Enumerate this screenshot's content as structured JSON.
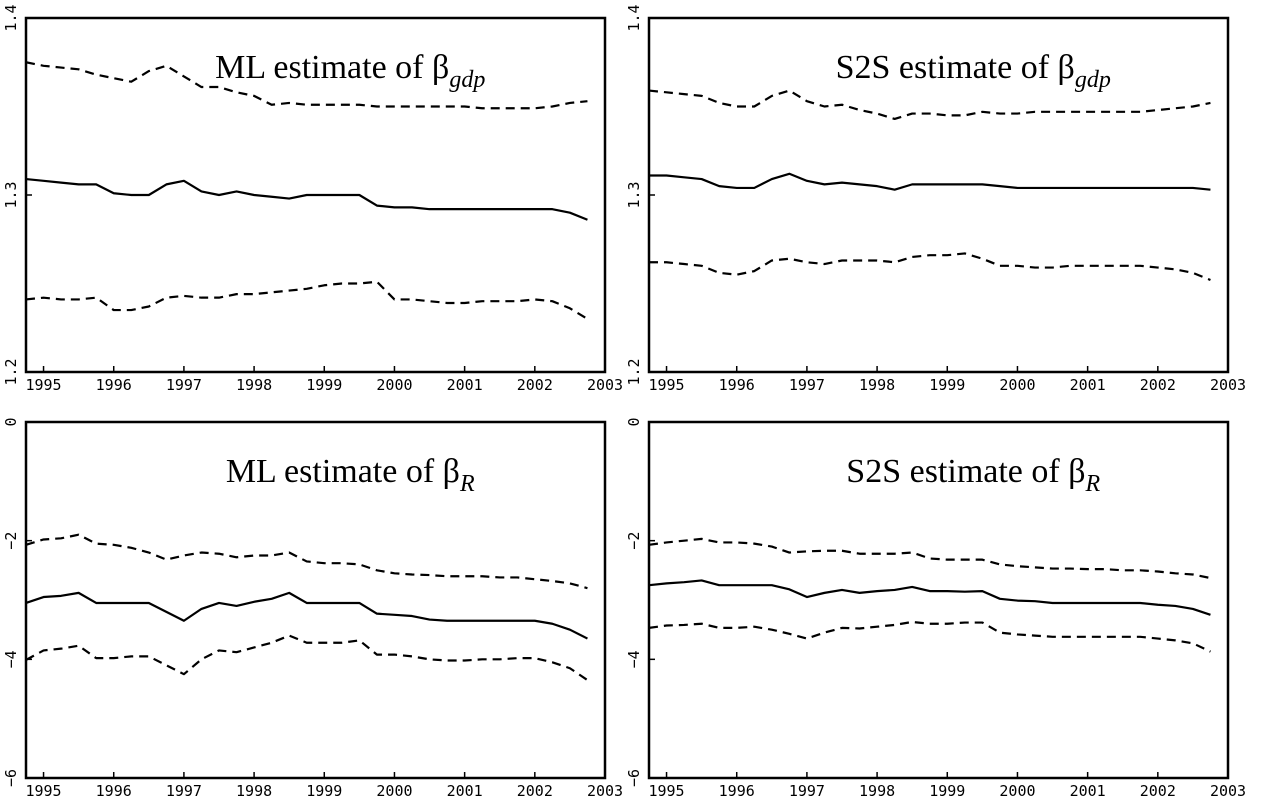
{
  "chart_data": [
    {
      "type": "line",
      "title": "ML estimate of β",
      "title_subscript": "gdp",
      "x": [
        1994.75,
        1995,
        1995.25,
        1995.5,
        1995.75,
        1996,
        1996.25,
        1996.5,
        1996.75,
        1997,
        1997.25,
        1997.5,
        1997.75,
        1998,
        1998.25,
        1998.5,
        1998.75,
        1999,
        1999.25,
        1999.5,
        1999.75,
        2000,
        2000.25,
        2000.5,
        2000.75,
        2001,
        2001.25,
        2001.5,
        2001.75,
        2002,
        2002.25,
        2002.5,
        2002.75
      ],
      "xlim": [
        1994.75,
        2003
      ],
      "xticks": [
        1995,
        1996,
        1997,
        1998,
        1999,
        2000,
        2001,
        2002,
        2003
      ],
      "ylim": [
        1.2,
        1.4
      ],
      "yticks": [
        1.2,
        1.3,
        1.4
      ],
      "grid": false,
      "series": [
        {
          "color": "#000000",
          "style": "dashed",
          "values": [
            1.375,
            1.373,
            1.372,
            1.371,
            1.368,
            1.366,
            1.364,
            1.37,
            1.373,
            1.367,
            1.361,
            1.361,
            1.358,
            1.356,
            1.351,
            1.352,
            1.351,
            1.351,
            1.351,
            1.351,
            1.35,
            1.35,
            1.35,
            1.35,
            1.35,
            1.35,
            1.349,
            1.349,
            1.349,
            1.349,
            1.35,
            1.352,
            1.353
          ]
        },
        {
          "color": "#000000",
          "style": "solid",
          "values": [
            1.309,
            1.308,
            1.307,
            1.306,
            1.306,
            1.301,
            1.3,
            1.3,
            1.306,
            1.308,
            1.302,
            1.3,
            1.302,
            1.3,
            1.299,
            1.298,
            1.3,
            1.3,
            1.3,
            1.3,
            1.294,
            1.293,
            1.293,
            1.292,
            1.292,
            1.292,
            1.292,
            1.292,
            1.292,
            1.292,
            1.292,
            1.29,
            1.286
          ]
        },
        {
          "color": "#000000",
          "style": "dashed",
          "values": [
            1.241,
            1.242,
            1.241,
            1.241,
            1.242,
            1.235,
            1.235,
            1.237,
            1.242,
            1.243,
            1.242,
            1.242,
            1.244,
            1.244,
            1.245,
            1.246,
            1.247,
            1.249,
            1.25,
            1.25,
            1.251,
            1.241,
            1.241,
            1.24,
            1.239,
            1.239,
            1.24,
            1.24,
            1.24,
            1.241,
            1.24,
            1.236,
            1.23
          ]
        }
      ]
    },
    {
      "type": "line",
      "title": "S2S estimate of β",
      "title_subscript": "gdp",
      "x": [
        1994.75,
        1995,
        1995.25,
        1995.5,
        1995.75,
        1996,
        1996.25,
        1996.5,
        1996.75,
        1997,
        1997.25,
        1997.5,
        1997.75,
        1998,
        1998.25,
        1998.5,
        1998.75,
        1999,
        1999.25,
        1999.5,
        1999.75,
        2000,
        2000.25,
        2000.5,
        2000.75,
        2001,
        2001.25,
        2001.5,
        2001.75,
        2002,
        2002.25,
        2002.5,
        2002.75
      ],
      "xlim": [
        1994.75,
        2003
      ],
      "xticks": [
        1995,
        1996,
        1997,
        1998,
        1999,
        2000,
        2001,
        2002,
        2003
      ],
      "ylim": [
        1.2,
        1.4
      ],
      "yticks": [
        1.2,
        1.3,
        1.4
      ],
      "grid": false,
      "series": [
        {
          "color": "#000000",
          "style": "dashed",
          "values": [
            1.359,
            1.358,
            1.357,
            1.356,
            1.352,
            1.35,
            1.35,
            1.356,
            1.359,
            1.353,
            1.35,
            1.351,
            1.348,
            1.346,
            1.343,
            1.346,
            1.346,
            1.345,
            1.345,
            1.347,
            1.346,
            1.346,
            1.347,
            1.347,
            1.347,
            1.347,
            1.347,
            1.347,
            1.347,
            1.348,
            1.349,
            1.35,
            1.352
          ]
        },
        {
          "color": "#000000",
          "style": "solid",
          "values": [
            1.311,
            1.311,
            1.31,
            1.309,
            1.305,
            1.304,
            1.304,
            1.309,
            1.312,
            1.308,
            1.306,
            1.307,
            1.306,
            1.305,
            1.303,
            1.306,
            1.306,
            1.306,
            1.306,
            1.306,
            1.305,
            1.304,
            1.304,
            1.304,
            1.304,
            1.304,
            1.304,
            1.304,
            1.304,
            1.304,
            1.304,
            1.304,
            1.303
          ]
        },
        {
          "color": "#000000",
          "style": "dashed",
          "values": [
            1.262,
            1.262,
            1.261,
            1.26,
            1.256,
            1.255,
            1.257,
            1.263,
            1.264,
            1.262,
            1.261,
            1.263,
            1.263,
            1.263,
            1.262,
            1.265,
            1.266,
            1.266,
            1.267,
            1.264,
            1.26,
            1.26,
            1.259,
            1.259,
            1.26,
            1.26,
            1.26,
            1.26,
            1.26,
            1.259,
            1.258,
            1.256,
            1.252
          ]
        }
      ]
    },
    {
      "type": "line",
      "title": "ML estimate of β",
      "title_subscript": "R",
      "x": [
        1994.75,
        1995,
        1995.25,
        1995.5,
        1995.75,
        1996,
        1996.25,
        1996.5,
        1996.75,
        1997,
        1997.25,
        1997.5,
        1997.75,
        1998,
        1998.25,
        1998.5,
        1998.75,
        1999,
        1999.25,
        1999.5,
        1999.75,
        2000,
        2000.25,
        2000.5,
        2000.75,
        2001,
        2001.25,
        2001.5,
        2001.75,
        2002,
        2002.25,
        2002.5,
        2002.75
      ],
      "xlim": [
        1994.75,
        2003
      ],
      "xticks": [
        1995,
        1996,
        1997,
        1998,
        1999,
        2000,
        2001,
        2002,
        2003
      ],
      "ylim": [
        -6,
        0
      ],
      "yticks": [
        {
          "value": -6,
          "label": "−6"
        },
        {
          "value": -4,
          "label": "−4"
        },
        {
          "value": -2,
          "label": "−2"
        },
        0
      ],
      "grid": false,
      "series": [
        {
          "color": "#000000",
          "style": "dashed",
          "values": [
            -2.07,
            -1.98,
            -1.96,
            -1.9,
            -2.05,
            -2.07,
            -2.12,
            -2.2,
            -2.32,
            -2.25,
            -2.2,
            -2.22,
            -2.28,
            -2.25,
            -2.25,
            -2.2,
            -2.35,
            -2.38,
            -2.38,
            -2.4,
            -2.5,
            -2.55,
            -2.57,
            -2.58,
            -2.6,
            -2.6,
            -2.6,
            -2.62,
            -2.62,
            -2.65,
            -2.68,
            -2.72,
            -2.8
          ]
        },
        {
          "color": "#000000",
          "style": "solid",
          "values": [
            -3.05,
            -2.95,
            -2.93,
            -2.88,
            -3.05,
            -3.05,
            -3.05,
            -3.05,
            -3.2,
            -3.35,
            -3.15,
            -3.05,
            -3.1,
            -3.03,
            -2.98,
            -2.88,
            -3.05,
            -3.05,
            -3.05,
            -3.05,
            -3.23,
            -3.25,
            -3.27,
            -3.33,
            -3.35,
            -3.35,
            -3.35,
            -3.35,
            -3.35,
            -3.35,
            -3.4,
            -3.5,
            -3.65
          ]
        },
        {
          "color": "#000000",
          "style": "dashed",
          "values": [
            -4.01,
            -3.85,
            -3.82,
            -3.77,
            -3.98,
            -3.98,
            -3.95,
            -3.95,
            -4.1,
            -4.25,
            -4.0,
            -3.85,
            -3.88,
            -3.8,
            -3.72,
            -3.6,
            -3.72,
            -3.72,
            -3.72,
            -3.68,
            -3.92,
            -3.92,
            -3.95,
            -4.0,
            -4.02,
            -4.02,
            -4.0,
            -4.0,
            -3.98,
            -3.98,
            -4.05,
            -4.15,
            -4.35
          ]
        }
      ]
    },
    {
      "type": "line",
      "title": "S2S estimate of β",
      "title_subscript": "R",
      "x": [
        1994.75,
        1995,
        1995.25,
        1995.5,
        1995.75,
        1996,
        1996.25,
        1996.5,
        1996.75,
        1997,
        1997.25,
        1997.5,
        1997.75,
        1998,
        1998.25,
        1998.5,
        1998.75,
        1999,
        1999.25,
        1999.5,
        1999.75,
        2000,
        2000.25,
        2000.5,
        2000.75,
        2001,
        2001.25,
        2001.5,
        2001.75,
        2002,
        2002.25,
        2002.5,
        2002.75
      ],
      "xlim": [
        1994.75,
        2003
      ],
      "xticks": [
        1995,
        1996,
        1997,
        1998,
        1999,
        2000,
        2001,
        2002,
        2003
      ],
      "ylim": [
        -6,
        0
      ],
      "yticks": [
        {
          "value": -6,
          "label": "−6"
        },
        {
          "value": -4,
          "label": "−4"
        },
        {
          "value": -2,
          "label": "−2"
        },
        0
      ],
      "grid": false,
      "series": [
        {
          "color": "#000000",
          "style": "dashed",
          "values": [
            -2.07,
            -2.03,
            -2.0,
            -1.97,
            -2.03,
            -2.03,
            -2.05,
            -2.1,
            -2.2,
            -2.18,
            -2.17,
            -2.17,
            -2.22,
            -2.22,
            -2.22,
            -2.2,
            -2.3,
            -2.32,
            -2.32,
            -2.32,
            -2.4,
            -2.43,
            -2.45,
            -2.47,
            -2.47,
            -2.48,
            -2.48,
            -2.5,
            -2.5,
            -2.52,
            -2.55,
            -2.57,
            -2.63
          ]
        },
        {
          "color": "#000000",
          "style": "solid",
          "values": [
            -2.75,
            -2.72,
            -2.7,
            -2.67,
            -2.75,
            -2.75,
            -2.75,
            -2.75,
            -2.82,
            -2.95,
            -2.88,
            -2.83,
            -2.88,
            -2.85,
            -2.83,
            -2.78,
            -2.85,
            -2.85,
            -2.86,
            -2.85,
            -2.98,
            -3.01,
            -3.02,
            -3.05,
            -3.05,
            -3.05,
            -3.05,
            -3.05,
            -3.05,
            -3.08,
            -3.1,
            -3.15,
            -3.25
          ]
        },
        {
          "color": "#000000",
          "style": "dashed",
          "values": [
            -3.47,
            -3.43,
            -3.42,
            -3.4,
            -3.47,
            -3.47,
            -3.45,
            -3.5,
            -3.57,
            -3.65,
            -3.55,
            -3.47,
            -3.48,
            -3.45,
            -3.42,
            -3.37,
            -3.4,
            -3.4,
            -3.38,
            -3.38,
            -3.55,
            -3.58,
            -3.6,
            -3.62,
            -3.62,
            -3.62,
            -3.62,
            -3.62,
            -3.62,
            -3.65,
            -3.68,
            -3.73,
            -3.87
          ]
        }
      ]
    }
  ]
}
